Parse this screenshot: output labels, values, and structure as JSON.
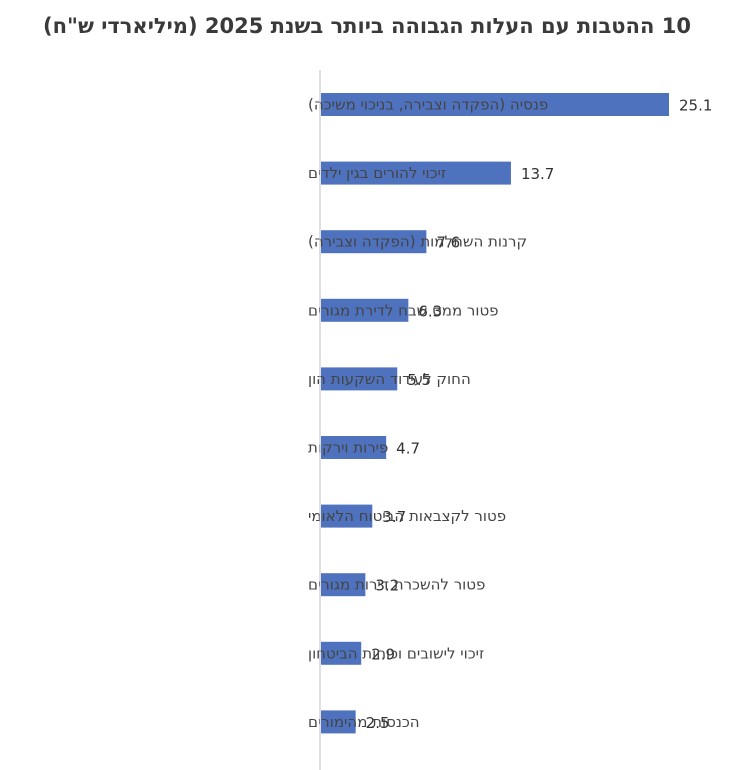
{
  "chart_data": {
    "type": "bar",
    "orientation": "horizontal",
    "title": "10 ההטבות עם העלות הגבוהה ביותר בשנת 2025 (מיליארדי ש\"ח)",
    "categories": [
      "פנסיה (הפקדה וצבירה, בניכוי משיכה)",
      "זיכוי להורים בגין ילדים",
      "קרנות השתלמות (הפקדה וצבירה)",
      "פטור ממס שבח לדירת מגורים",
      "החוק לעידוד השקעות הון",
      "פירות וירקות",
      "פטור לקצבאות הביטוח הלאומי",
      "פטור להשכרת דירות מגורים",
      "זיכוי לישובים וכוחות הביטחון",
      "הכנסות מהימורים"
    ],
    "values": [
      25.1,
      13.7,
      7.6,
      6.3,
      5.5,
      4.7,
      3.7,
      3.2,
      2.9,
      2.5
    ],
    "data_labels": [
      "25.1",
      "13.7",
      "7.6",
      "6.3",
      "5.5",
      "4.7",
      "3.7",
      "3.2",
      "2.9",
      "2.5"
    ],
    "xlim": [
      0,
      25.1
    ],
    "grid": false,
    "legend": "none",
    "bar_color": "#4f72be",
    "axis_color": "#bfbfbf"
  }
}
